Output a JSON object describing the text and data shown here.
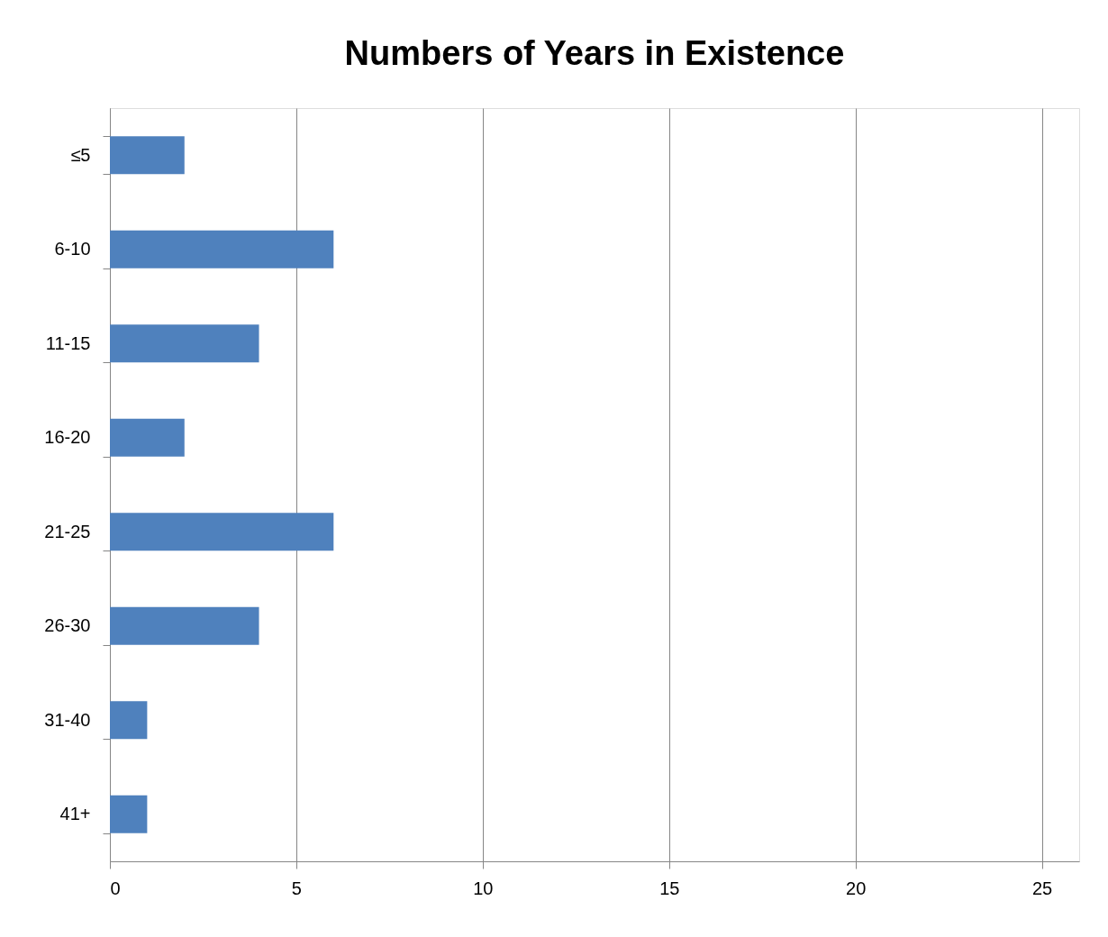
{
  "chart_data": {
    "type": "bar",
    "orientation": "horizontal",
    "title": "Numbers of Years in Existence",
    "categories": [
      "≤5",
      "6-10",
      "11-15",
      "16-20",
      "21-25",
      "26-30",
      "31-40",
      "41+"
    ],
    "values": [
      2,
      6,
      4,
      2,
      6,
      4,
      1,
      1
    ],
    "color": "#4f81bd",
    "xlim": [
      0,
      26
    ],
    "xticks": [
      0,
      5,
      10,
      15,
      20,
      25
    ],
    "grid": "x"
  }
}
